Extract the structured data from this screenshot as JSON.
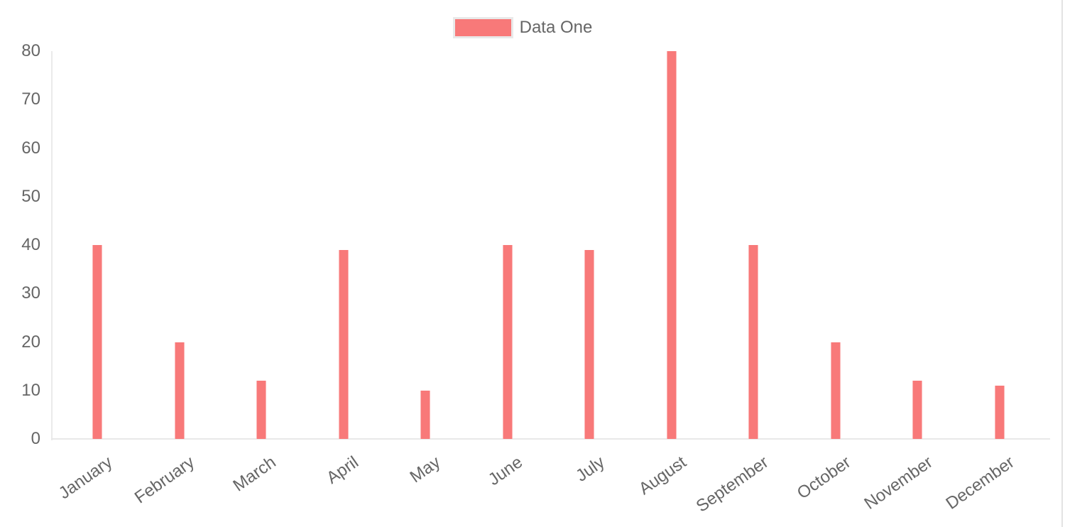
{
  "page": {
    "background": "#ffffff",
    "right_border_color": "#e3e3e3"
  },
  "legend": {
    "label": "Data One",
    "swatch_fill": "#f87979",
    "swatch_border": "#e9e9e9",
    "text_color": "#666666",
    "position": "top"
  },
  "axes": {
    "text_color": "#666666",
    "line_color": "#eaeaea",
    "gridlines": false
  },
  "chart_data": {
    "type": "bar",
    "title": "",
    "xlabel": "",
    "ylabel": "",
    "categories": [
      "January",
      "February",
      "March",
      "April",
      "May",
      "June",
      "July",
      "August",
      "September",
      "October",
      "November",
      "December"
    ],
    "series": [
      {
        "name": "Data One",
        "values": [
          40,
          20,
          12,
          39,
          10,
          40,
          39,
          80,
          40,
          20,
          12,
          11
        ]
      }
    ],
    "ylim": [
      0,
      80
    ],
    "y_ticks": [
      80,
      70,
      60,
      50,
      40,
      30,
      20,
      10,
      0
    ],
    "legend_position": "top",
    "grid": false,
    "bar_color": "#f87979",
    "bar_edge_color": "#fbb6b6",
    "x_label_rotation_deg": -35,
    "background": "#ffffff"
  }
}
